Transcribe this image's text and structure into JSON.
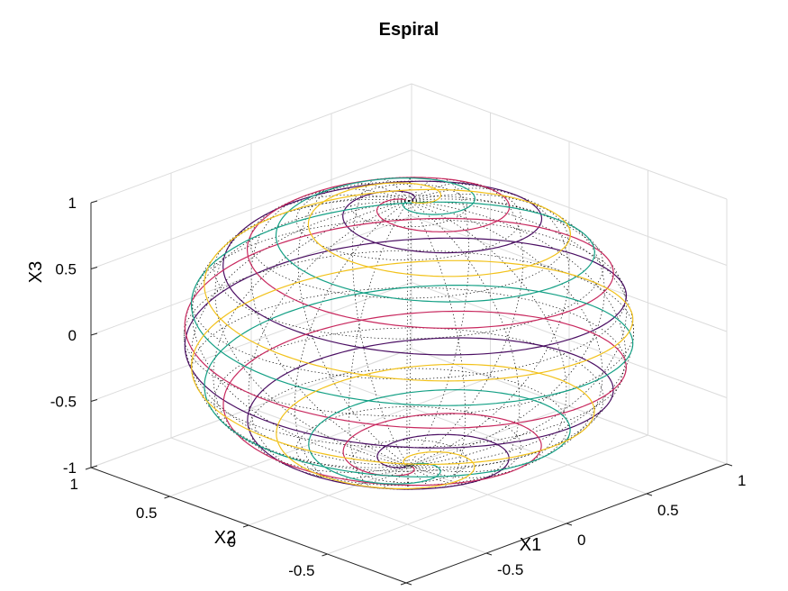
{
  "chart_data": {
    "type": "line3d",
    "title": "Espiral",
    "xlabel": "X1",
    "ylabel": "X2",
    "zlabel": "X3",
    "xlim": [
      -1,
      1
    ],
    "ylim": [
      -1,
      1
    ],
    "zlim": [
      -1,
      1
    ],
    "xticks": [
      "-1",
      "-0.5",
      "0",
      "0.5",
      "1"
    ],
    "yticks": [
      "-1",
      "-0.5",
      "0",
      "0.5",
      "1"
    ],
    "zticks": [
      "-1",
      "-0.5",
      "0",
      "0.5",
      "1"
    ],
    "grid": true,
    "box": "3d-open",
    "sphere": {
      "radius": 1,
      "style": "dotted wireframe",
      "color": "#000000"
    },
    "series": [
      {
        "color": "#4B0F63",
        "turns": 4.5,
        "phase_deg": 0
      },
      {
        "color": "#C8285E",
        "turns": 4.5,
        "phase_deg": 90
      },
      {
        "color": "#14A085",
        "turns": 4.5,
        "phase_deg": 180
      },
      {
        "color": "#F2C21B",
        "turns": 4.5,
        "phase_deg": 270
      }
    ]
  }
}
